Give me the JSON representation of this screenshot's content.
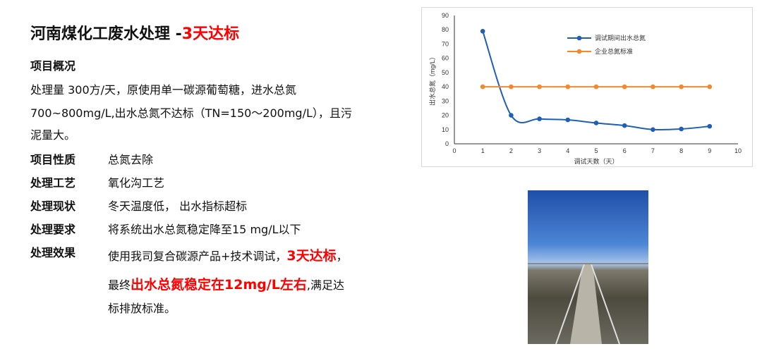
{
  "title": {
    "main": "河南煤化工废水处理 -",
    "highlight": "3天达标"
  },
  "overview": {
    "heading": "项目概况",
    "lines": [
      "处理量 300方/天，原使用单一碳源葡萄糖，进水总氮",
      "700~800mg/L,出水总氮不达标（TN=150～200mg/L），且污",
      "泥量大。"
    ]
  },
  "rows": [
    {
      "label": "项目性质",
      "value": "总氮去除"
    },
    {
      "label": "处理工艺",
      "value": "氧化沟工艺"
    },
    {
      "label": "处理现状",
      "value": "冬天温度低， 出水指标超标"
    },
    {
      "label": "处理要求",
      "value": "将系统出水总氮稳定降至15 mg/L以下"
    }
  ],
  "effect": {
    "label": "处理效果",
    "l1a": "使用我司复合碳源产品+技术调试，",
    "l1b": "3天达标",
    "l1c": "，",
    "l2a": "最终",
    "l2b": "出水总氮稳定在12mg/L左右",
    "l2c": ",满足达",
    "l3": "标排放标准。"
  },
  "colors": {
    "accent": "#ff0000",
    "series1": "#1f5fb4",
    "series2": "#f08a30"
  },
  "chart_data": {
    "type": "line",
    "xlabel": "调试天数（天）",
    "ylabel": "出水总氮（mg/L）",
    "xlim": [
      0,
      10
    ],
    "ylim": [
      0,
      90
    ],
    "xticks": [
      0,
      1,
      2,
      3,
      4,
      5,
      6,
      7,
      8,
      9,
      10
    ],
    "yticks": [
      0,
      10,
      20,
      30,
      40,
      50,
      60,
      70,
      80,
      90
    ],
    "x": [
      1,
      2,
      3,
      4,
      5,
      6,
      7,
      8,
      9
    ],
    "series": [
      {
        "name": "调试期间出水总氮",
        "values": [
          79,
          20,
          17.5,
          16.8,
          14.6,
          12.8,
          10,
          10.4,
          12.3
        ],
        "color": "#1f5fb4",
        "smooth": true
      },
      {
        "name": "企业总氮标准",
        "values": [
          40,
          40,
          40,
          40,
          40,
          40,
          40,
          40,
          40
        ],
        "color": "#f08a30"
      }
    ],
    "legend": "top-right",
    "grid": false
  },
  "photo": {
    "icon": "wastewater-plant-photo"
  }
}
